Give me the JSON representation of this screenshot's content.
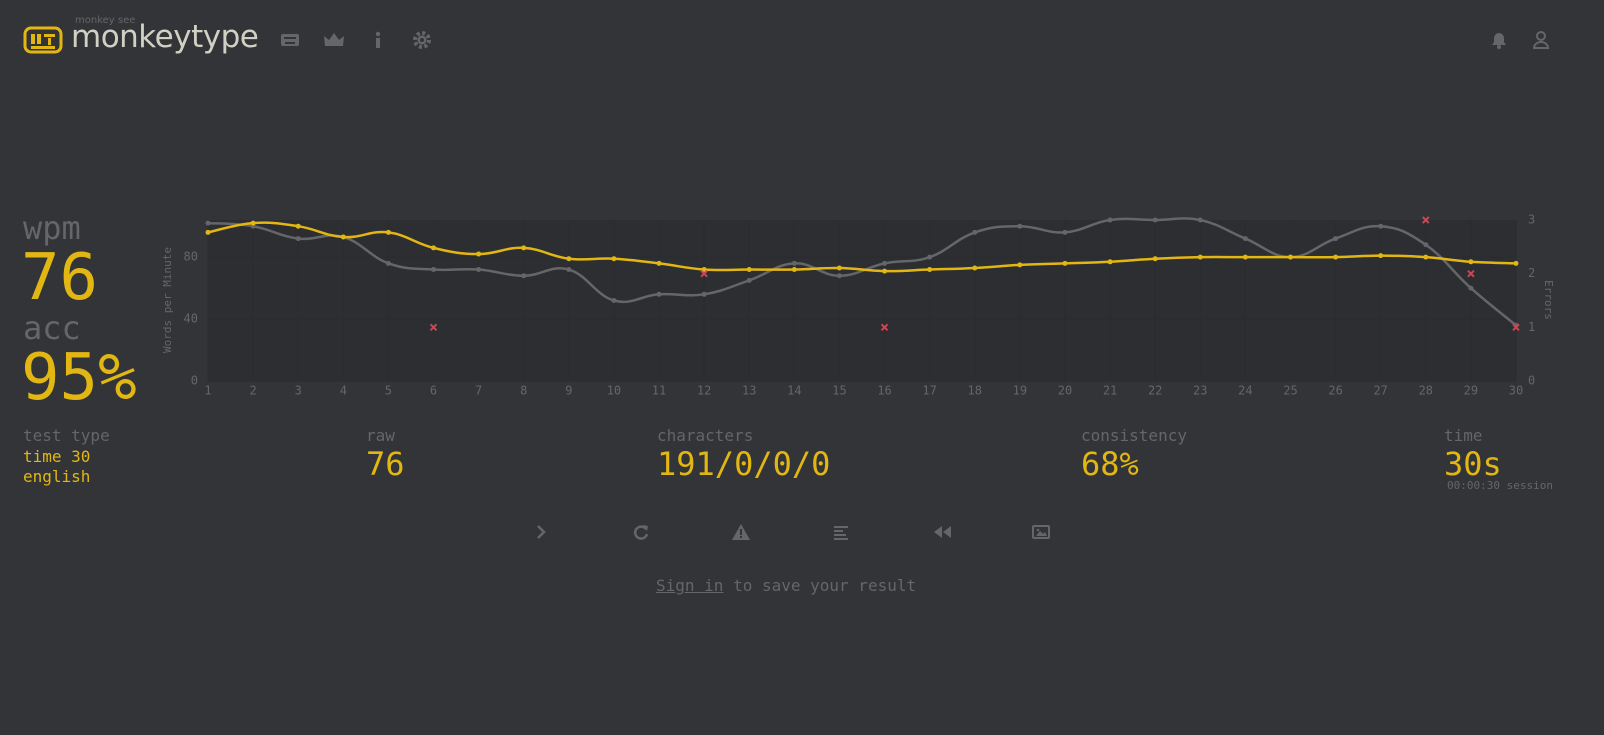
{
  "header": {
    "tagline": "monkey see",
    "logo": "monkeytype"
  },
  "stats": {
    "wpm_label": "wpm",
    "wpm": "76",
    "acc_label": "acc",
    "acc": "95%",
    "test_type_label": "test type",
    "test_type": [
      "time 30",
      "english"
    ],
    "raw_label": "raw",
    "raw": "76",
    "characters_label": "characters",
    "characters": "191/0/0/0",
    "consistency_label": "consistency",
    "consistency": "68%",
    "time_label": "time",
    "time": "30s",
    "session": "00:00:30 session"
  },
  "footer": {
    "link": "Sign in",
    "text": "to save your result"
  },
  "chart_data": {
    "type": "line",
    "y_label": "Words per Minute",
    "y2_label": "Errors",
    "x": [
      1,
      2,
      3,
      4,
      5,
      6,
      7,
      8,
      9,
      10,
      11,
      12,
      13,
      14,
      15,
      16,
      17,
      18,
      19,
      20,
      21,
      22,
      23,
      24,
      25,
      26,
      27,
      28,
      29,
      30
    ],
    "xlim": [
      1,
      30
    ],
    "xticks": [
      1,
      2,
      3,
      4,
      5,
      6,
      7,
      8,
      9,
      10,
      11,
      12,
      13,
      14,
      15,
      16,
      17,
      18,
      19,
      20,
      21,
      22,
      23,
      24,
      25,
      26,
      27,
      28,
      29,
      30
    ],
    "ylim": [
      0,
      104
    ],
    "yticks": [
      0,
      40,
      80
    ],
    "y2lim": [
      0,
      3
    ],
    "y2ticks": [
      0,
      1,
      2,
      3
    ],
    "grid": true,
    "series": [
      {
        "color": "#646669",
        "values": [
          102,
          100,
          92,
          93,
          76,
          72,
          72,
          68,
          72,
          52,
          56,
          56,
          65,
          76,
          68,
          76,
          80,
          96,
          100,
          96,
          104,
          104,
          104,
          92,
          80,
          92,
          100,
          88,
          60,
          36
        ]
      },
      {
        "color": "#e2b714",
        "values": [
          96,
          102,
          100,
          93,
          96,
          86,
          82,
          86,
          79,
          79,
          76,
          72,
          72,
          72,
          73,
          71,
          72,
          73,
          75,
          76,
          77,
          79,
          80,
          80,
          80,
          80,
          81,
          80,
          77,
          76
        ]
      },
      {
        "color": "#ca4754",
        "axis": "y2",
        "marker": "x",
        "values": [
          null,
          null,
          null,
          null,
          null,
          1,
          null,
          null,
          null,
          null,
          null,
          2,
          null,
          null,
          null,
          1,
          null,
          null,
          null,
          null,
          null,
          null,
          null,
          null,
          null,
          null,
          null,
          3,
          2,
          1
        ]
      }
    ]
  }
}
